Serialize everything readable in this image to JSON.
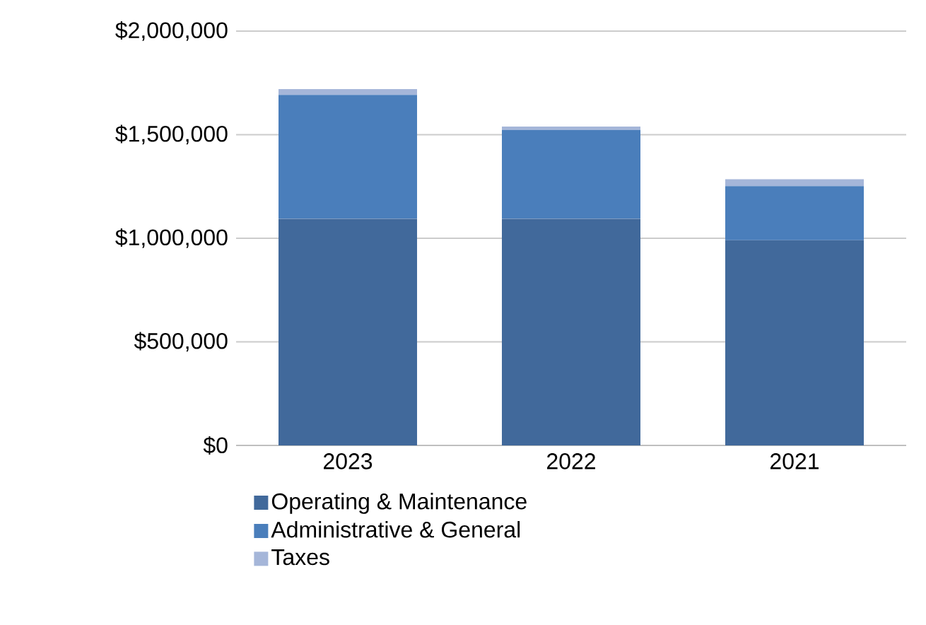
{
  "chart_data": {
    "type": "bar",
    "stacked": true,
    "categories": [
      "2023",
      "2022",
      "2021"
    ],
    "series": [
      {
        "name": "Operating & Maintenance",
        "color": "#41699b",
        "values": [
          1095000,
          1095000,
          991000
        ]
      },
      {
        "name": "Administrative & General",
        "color": "#4a7ebb",
        "values": [
          597000,
          428000,
          261000
        ]
      },
      {
        "name": "Taxes",
        "color": "#a5b6d9",
        "values": [
          28000,
          16000,
          33000
        ]
      }
    ],
    "ylim": [
      0,
      2000000
    ],
    "yticks": [
      {
        "value": 0,
        "label": "$0"
      },
      {
        "value": 500000,
        "label": "$500,000"
      },
      {
        "value": 1000000,
        "label": "$1,000,000"
      },
      {
        "value": 1500000,
        "label": "$1,500,000"
      },
      {
        "value": 2000000,
        "label": "$2,000,000"
      }
    ],
    "grid": "y",
    "legend": "bottom"
  }
}
